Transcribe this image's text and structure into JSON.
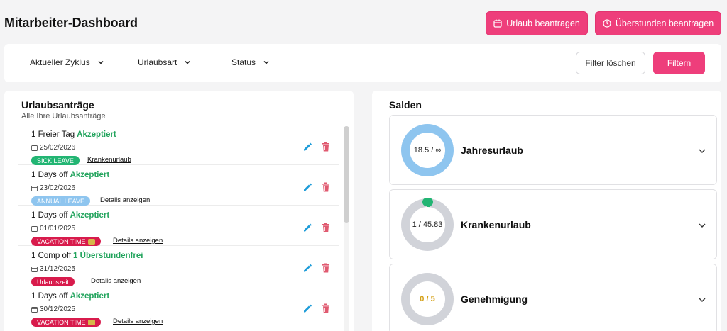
{
  "header": {
    "title": "Mitarbeiter-Dashboard",
    "vacation_button": "Urlaub beantragen",
    "overtime_button": "Überstunden beantragen"
  },
  "filters": {
    "cycle": "Aktueller Zyklus",
    "leave_type": "Urlaubsart",
    "status": "Status",
    "clear_button": "Filter löschen",
    "apply_button": "Filtern"
  },
  "requests": {
    "title": "Urlaubsanträge",
    "subtitle": "Alle Ihre Urlaubsanträge",
    "items": [
      {
        "title": "1 Freier Tag",
        "status": "Akzeptiert",
        "date": "25/02/2026",
        "badge": "SICK LEAVE",
        "link": "Krankenurlaub"
      },
      {
        "title": "1 Days off",
        "status": "Akzeptiert",
        "date": "23/02/2026",
        "badge": "ANNUAL LEAVE",
        "link": "Details anzeigen"
      },
      {
        "title": "1 Days off",
        "status": "Akzeptiert",
        "date": "01/01/2025",
        "badge": "VACATION TIME",
        "link": "Details anzeigen"
      },
      {
        "title": "1 Comp off",
        "status": "1 Überstundenfrei",
        "date": "31/12/2025",
        "badge": "Urlaubszeit",
        "link": "Details anzeigen"
      },
      {
        "title": "1 Days off",
        "status": "Akzeptiert",
        "date": "30/12/2025",
        "badge": "VACATION TIME",
        "link": "Details anzeigen"
      }
    ]
  },
  "balances": {
    "title": "Salden",
    "items": [
      {
        "name": "Jahresurlaub",
        "value": "18.5 / ∞",
        "progress": 1.0
      },
      {
        "name": "Krankenurlaub",
        "value": "1 / 45.83",
        "progress": 0.02
      },
      {
        "name": "Genehmigung",
        "value": "0 / 5",
        "progress": 0.0
      }
    ]
  },
  "colors": {
    "accent": "#ee3e7b",
    "accepted": "#22a45d",
    "sick_badge": "#22b573",
    "annual_badge": "#8ec5ef",
    "vacation_badge": "#d81b4c",
    "ring_annual": "#8ec5ef",
    "ring_empty": "#d1d3d9",
    "approval_value": "#d4a017",
    "edit_icon": "#1c9bd8",
    "delete_icon": "#e05a70"
  }
}
